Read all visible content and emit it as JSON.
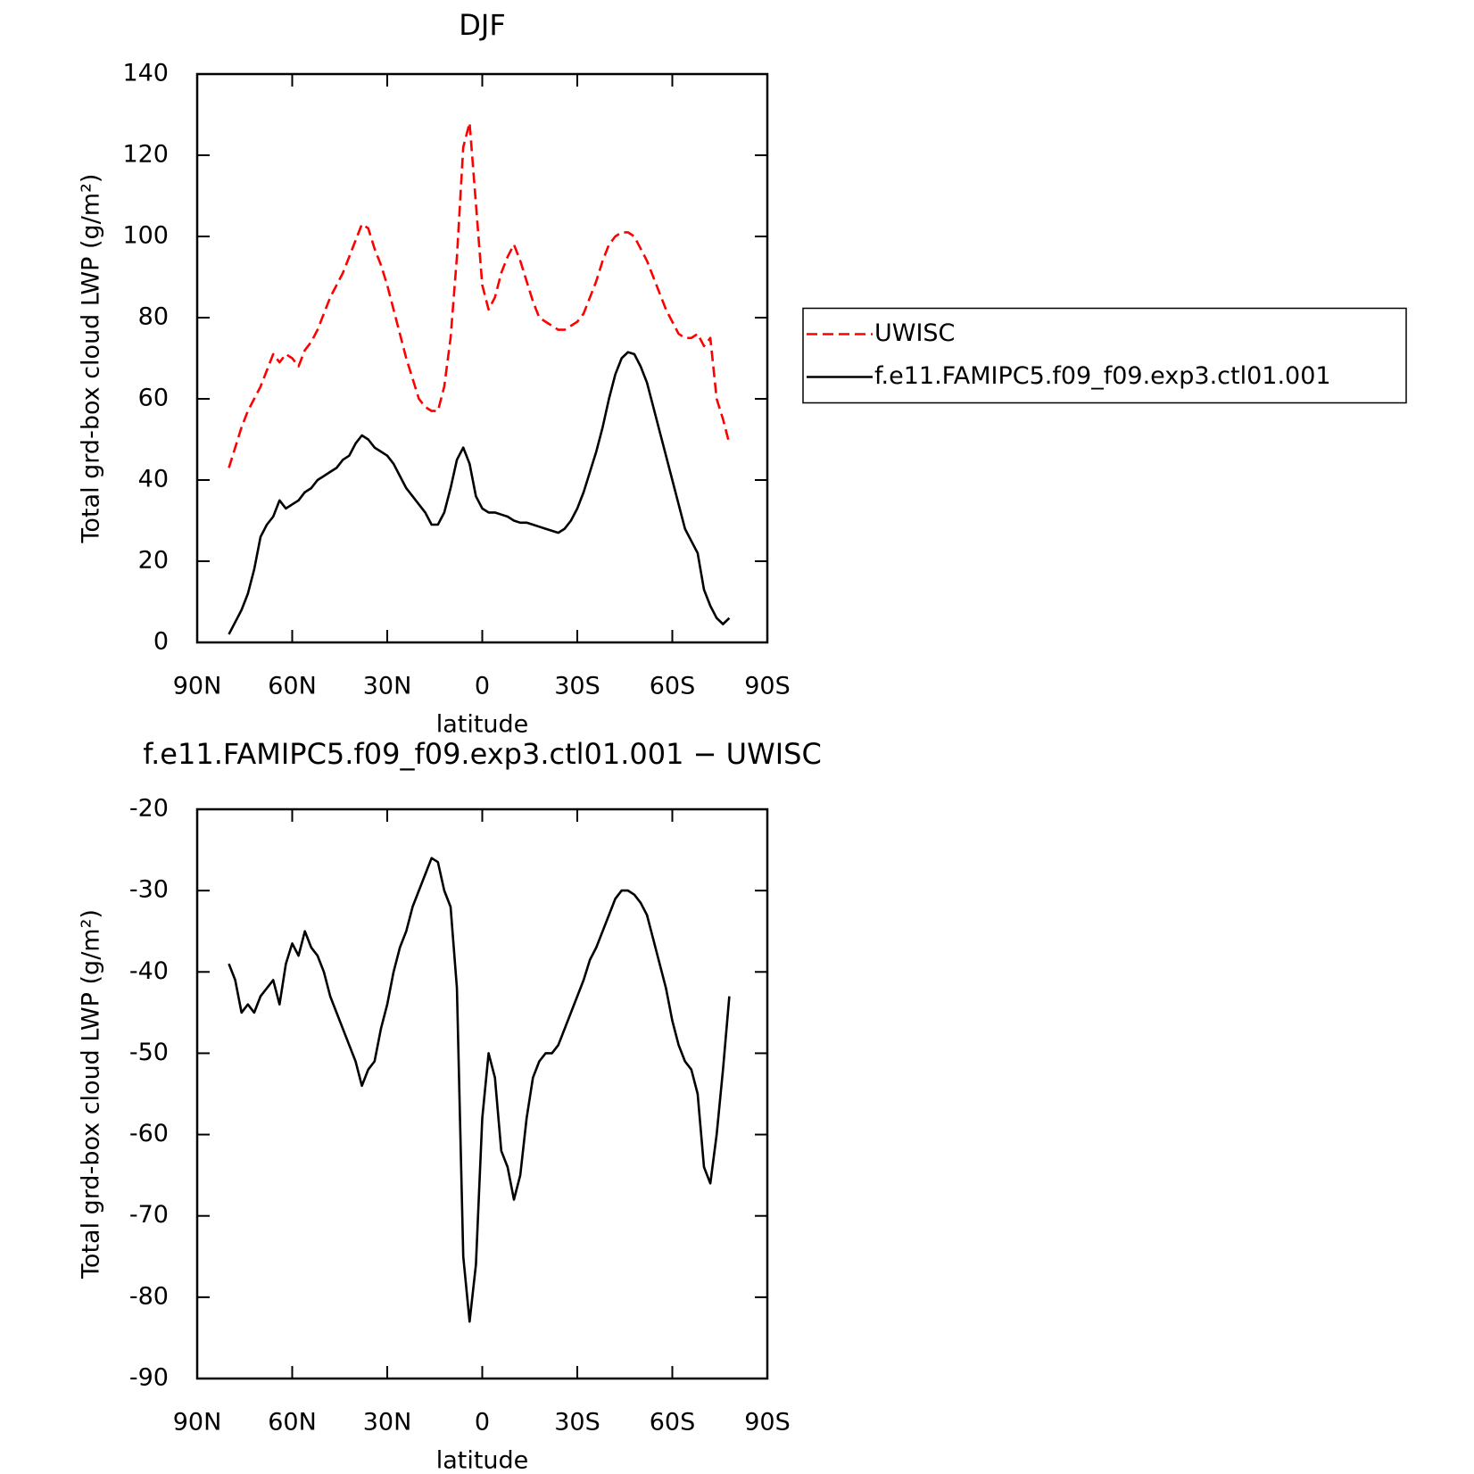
{
  "chart_data": [
    {
      "type": "line",
      "title": "DJF",
      "xlabel": "latitude",
      "ylabel": "Total grd-box cloud LWP (g/m²)",
      "x": [
        80,
        78,
        76,
        74,
        72,
        70,
        68,
        66,
        64,
        62,
        60,
        58,
        56,
        54,
        52,
        50,
        48,
        46,
        44,
        42,
        40,
        38,
        36,
        34,
        32,
        30,
        28,
        26,
        24,
        22,
        20,
        18,
        16,
        14,
        12,
        10,
        8,
        6,
        4,
        2,
        0,
        -2,
        -4,
        -6,
        -8,
        -10,
        -12,
        -14,
        -16,
        -18,
        -20,
        -22,
        -24,
        -26,
        -28,
        -30,
        -32,
        -34,
        -36,
        -38,
        -40,
        -42,
        -44,
        -46,
        -48,
        -50,
        -52,
        -54,
        -56,
        -58,
        -60,
        -62,
        -64,
        -66,
        -68,
        -70,
        -72,
        -74,
        -76,
        -78
      ],
      "series": [
        {
          "name": "UWISC",
          "color": "#ff0000",
          "line_style": "dashed",
          "values": [
            43,
            48,
            53,
            57,
            60,
            63,
            67,
            71,
            69,
            71,
            70,
            68,
            72,
            74,
            77,
            81,
            85,
            88,
            91,
            95,
            99,
            103,
            102,
            97,
            93,
            88,
            82,
            76,
            70,
            65,
            60,
            58,
            57,
            57,
            63,
            75,
            95,
            122,
            128,
            108,
            88,
            82,
            85,
            91,
            95,
            98,
            94,
            89,
            84,
            80,
            79,
            78,
            77,
            77,
            78,
            79,
            81,
            85,
            89,
            94,
            98,
            100,
            101,
            101,
            100,
            97,
            94,
            90,
            86,
            82,
            79,
            76,
            75,
            75,
            76,
            73,
            75,
            60,
            55,
            49
          ]
        },
        {
          "name": "f.e11.FAMIPC5.f09_f09.exp3.ctl01.001",
          "color": "#000000",
          "line_style": "solid",
          "values": [
            2,
            5,
            8,
            12,
            18,
            26,
            29,
            31,
            35,
            33,
            34,
            35,
            37,
            38,
            40,
            41,
            42,
            43,
            45,
            46,
            49,
            51,
            50,
            48,
            47,
            46,
            44,
            41,
            38,
            36,
            34,
            32,
            29,
            29,
            32,
            38,
            45,
            48,
            44,
            36,
            33,
            32,
            32,
            31.5,
            31,
            30,
            29.5,
            29.5,
            29,
            28.5,
            28,
            27.5,
            27,
            28,
            30,
            33,
            37,
            42,
            47,
            53,
            60,
            66,
            70,
            71.5,
            71,
            68,
            64,
            58,
            52,
            46,
            40,
            34,
            28,
            25,
            22,
            13,
            9,
            6,
            4.5,
            6
          ]
        }
      ],
      "xlim": [
        90,
        -90
      ],
      "xticks": [
        {
          "value": 90,
          "label": "90N"
        },
        {
          "value": 60,
          "label": "60N"
        },
        {
          "value": 30,
          "label": "30N"
        },
        0,
        {
          "value": -30,
          "label": "30S"
        },
        {
          "value": -60,
          "label": "60S"
        },
        {
          "value": -90,
          "label": "90S"
        }
      ],
      "ylim": [
        0,
        140
      ],
      "yticks": [
        0,
        20,
        40,
        60,
        80,
        100,
        120,
        140
      ],
      "legend": "right"
    },
    {
      "type": "line",
      "title": "f.e11.FAMIPC5.f09_f09.exp3.ctl01.001 − UWISC",
      "xlabel": "latitude",
      "ylabel": "Total grd-box cloud LWP (g/m²)",
      "x": [
        80,
        78,
        76,
        74,
        72,
        70,
        68,
        66,
        64,
        62,
        60,
        58,
        56,
        54,
        52,
        50,
        48,
        46,
        44,
        42,
        40,
        38,
        36,
        34,
        32,
        30,
        28,
        26,
        24,
        22,
        20,
        18,
        16,
        14,
        12,
        10,
        8,
        6,
        4,
        2,
        0,
        -2,
        -4,
        -6,
        -8,
        -10,
        -12,
        -14,
        -16,
        -18,
        -20,
        -22,
        -24,
        -26,
        -28,
        -30,
        -32,
        -34,
        -36,
        -38,
        -40,
        -42,
        -44,
        -46,
        -48,
        -50,
        -52,
        -54,
        -56,
        -58,
        -60,
        -62,
        -64,
        -66,
        -68,
        -70,
        -72,
        -74,
        -76,
        -78
      ],
      "values": [
        -39,
        -41,
        -45,
        -44,
        -45,
        -43,
        -42,
        -41,
        -44,
        -39,
        -36.5,
        -38,
        -35,
        -37,
        -38,
        -40,
        -43,
        -45,
        -47,
        -49,
        -51,
        -54,
        -52,
        -51,
        -47,
        -44,
        -40,
        -37,
        -35,
        -32,
        -30,
        -28,
        -26,
        -26.5,
        -30,
        -32,
        -42,
        -75,
        -83,
        -76,
        -58,
        -50,
        -53,
        -62,
        -64,
        -68,
        -65,
        -58,
        -53,
        -51,
        -50,
        -50,
        -49,
        -47,
        -45,
        -43,
        -41,
        -38.5,
        -37,
        -35,
        -33,
        -31,
        -30,
        -30,
        -30.5,
        -31.5,
        -33,
        -36,
        -39,
        -42,
        -46,
        -49,
        -51,
        -52,
        -55,
        -64,
        -66,
        -60,
        -52,
        -43
      ],
      "color": "#000000",
      "xlim": [
        90,
        -90
      ],
      "xticks": [
        {
          "value": 90,
          "label": "90N"
        },
        {
          "value": 60,
          "label": "60N"
        },
        {
          "value": 30,
          "label": "30N"
        },
        0,
        {
          "value": -30,
          "label": "30S"
        },
        {
          "value": -60,
          "label": "60S"
        },
        {
          "value": -90,
          "label": "90S"
        }
      ],
      "ylim": [
        -90,
        -20
      ],
      "yticks": [
        -90,
        -80,
        -70,
        -60,
        -50,
        -40,
        -30,
        -20
      ]
    }
  ]
}
